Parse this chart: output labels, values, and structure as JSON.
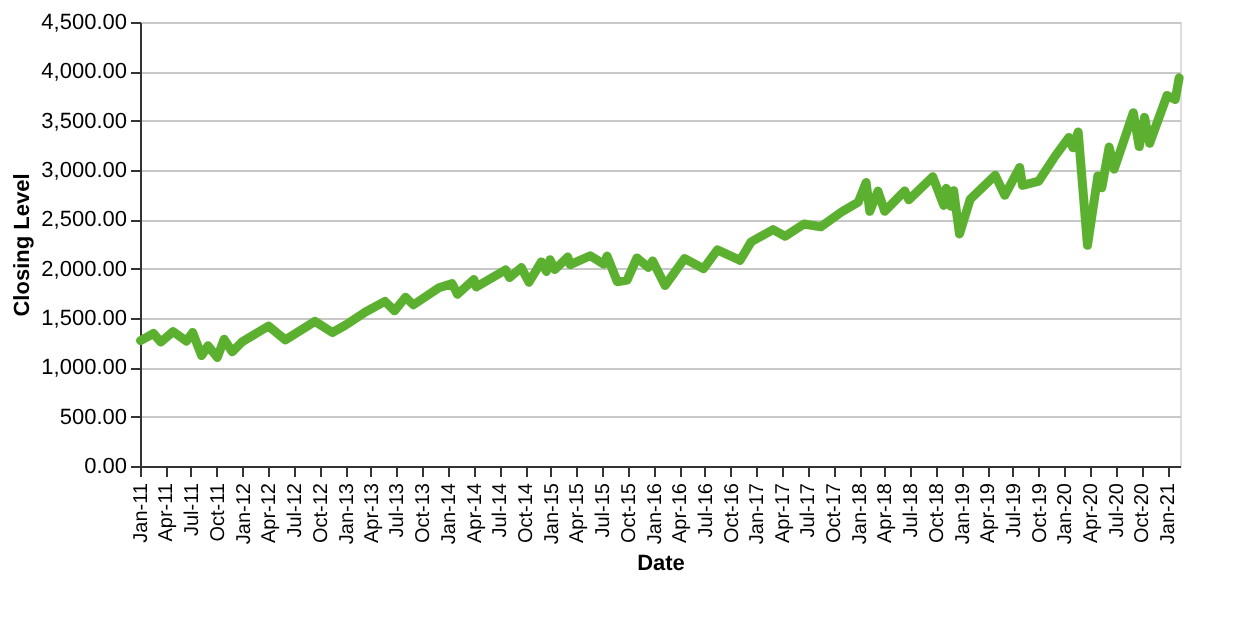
{
  "chart_data": {
    "type": "line",
    "xlabel": "Date",
    "ylabel": "Closing Level",
    "x": [
      "2011-01-03",
      "2011-02-18",
      "2011-03-16",
      "2011-04-29",
      "2011-06-15",
      "2011-07-07",
      "2011-08-08",
      "2011-08-31",
      "2011-10-03",
      "2011-10-27",
      "2011-11-25",
      "2011-12-30",
      "2012-04-02",
      "2012-06-01",
      "2012-09-14",
      "2012-11-15",
      "2012-12-31",
      "2013-03-14",
      "2013-05-21",
      "2013-06-24",
      "2013-08-02",
      "2013-08-30",
      "2013-11-29",
      "2014-01-15",
      "2014-02-03",
      "2014-04-02",
      "2014-04-11",
      "2014-07-24",
      "2014-08-07",
      "2014-09-18",
      "2014-10-15",
      "2014-11-28",
      "2014-12-16",
      "2014-12-29",
      "2015-01-15",
      "2015-03-02",
      "2015-03-11",
      "2015-05-21",
      "2015-07-08",
      "2015-07-20",
      "2015-08-25",
      "2015-09-29",
      "2015-11-03",
      "2015-12-14",
      "2015-12-29",
      "2016-02-11",
      "2016-04-20",
      "2016-06-27",
      "2016-08-15",
      "2016-11-04",
      "2016-12-13",
      "2017-03-01",
      "2017-04-13",
      "2017-06-19",
      "2017-08-18",
      "2017-10-31",
      "2017-12-29",
      "2018-01-26",
      "2018-02-08",
      "2018-03-09",
      "2018-04-02",
      "2018-06-12",
      "2018-06-27",
      "2018-09-20",
      "2018-10-29",
      "2018-11-07",
      "2018-11-23",
      "2018-12-03",
      "2018-12-24",
      "2019-01-31",
      "2019-04-30",
      "2019-06-03",
      "2019-07-26",
      "2019-08-05",
      "2019-10-02",
      "2019-11-29",
      "2020-01-17",
      "2020-01-31",
      "2020-02-19",
      "2020-03-23",
      "2020-04-29",
      "2020-05-13",
      "2020-06-08",
      "2020-06-26",
      "2020-09-02",
      "2020-09-23",
      "2020-10-12",
      "2020-10-30",
      "2020-12-31",
      "2021-01-29",
      "2021-02-12"
    ],
    "series": [
      {
        "color": "#5bb12f",
        "values": [
          1271,
          1343,
          1256,
          1363,
          1265,
          1353,
          1119,
          1219,
          1099,
          1285,
          1158,
          1258,
          1419,
          1278,
          1466,
          1353,
          1426,
          1563,
          1669,
          1573,
          1710,
          1633,
          1806,
          1848,
          1741,
          1890,
          1815,
          1988,
          1910,
          2011,
          1862,
          2068,
          1972,
          2090,
          1992,
          2117,
          2040,
          2131,
          2046,
          2128,
          1868,
          1884,
          2109,
          2012,
          2078,
          1829,
          2102,
          2000,
          2190,
          2085,
          2271,
          2396,
          2329,
          2453,
          2425,
          2575,
          2674,
          2873,
          2581,
          2786,
          2582,
          2787,
          2699,
          2931,
          2641,
          2814,
          2633,
          2790,
          2351,
          2704,
          2946,
          2744,
          3026,
          2845,
          2888,
          3141,
          3330,
          3226,
          3386,
          2237,
          2940,
          2820,
          3232,
          3009,
          3580,
          3237,
          3534,
          3270,
          3756,
          3714,
          3934
        ]
      }
    ],
    "xlim": [
      "2011-01-01",
      "2021-02-15"
    ],
    "xticks": [
      {
        "value": "2011-01-01",
        "label": "Jan-11"
      },
      {
        "value": "2011-04-01",
        "label": "Apr-11"
      },
      {
        "value": "2011-07-01",
        "label": "Jul-11"
      },
      {
        "value": "2011-10-01",
        "label": "Oct-11"
      },
      {
        "value": "2012-01-01",
        "label": "Jan-12"
      },
      {
        "value": "2012-04-01",
        "label": "Apr-12"
      },
      {
        "value": "2012-07-01",
        "label": "Jul-12"
      },
      {
        "value": "2012-10-01",
        "label": "Oct-12"
      },
      {
        "value": "2013-01-01",
        "label": "Jan-13"
      },
      {
        "value": "2013-04-01",
        "label": "Apr-13"
      },
      {
        "value": "2013-07-01",
        "label": "Jul-13"
      },
      {
        "value": "2013-10-01",
        "label": "Oct-13"
      },
      {
        "value": "2014-01-01",
        "label": "Jan-14"
      },
      {
        "value": "2014-04-01",
        "label": "Apr-14"
      },
      {
        "value": "2014-07-01",
        "label": "Jul-14"
      },
      {
        "value": "2014-10-01",
        "label": "Oct-14"
      },
      {
        "value": "2015-01-01",
        "label": "Jan-15"
      },
      {
        "value": "2015-04-01",
        "label": "Apr-15"
      },
      {
        "value": "2015-07-01",
        "label": "Jul-15"
      },
      {
        "value": "2015-10-01",
        "label": "Oct-15"
      },
      {
        "value": "2016-01-01",
        "label": "Jan-16"
      },
      {
        "value": "2016-04-01",
        "label": "Apr-16"
      },
      {
        "value": "2016-07-01",
        "label": "Jul-16"
      },
      {
        "value": "2016-10-01",
        "label": "Oct-16"
      },
      {
        "value": "2017-01-01",
        "label": "Jan-17"
      },
      {
        "value": "2017-04-01",
        "label": "Apr-17"
      },
      {
        "value": "2017-07-01",
        "label": "Jul-17"
      },
      {
        "value": "2017-10-01",
        "label": "Oct-17"
      },
      {
        "value": "2018-01-01",
        "label": "Jan-18"
      },
      {
        "value": "2018-04-01",
        "label": "Apr-18"
      },
      {
        "value": "2018-07-01",
        "label": "Jul-18"
      },
      {
        "value": "2018-10-01",
        "label": "Oct-18"
      },
      {
        "value": "2019-01-01",
        "label": "Jan-19"
      },
      {
        "value": "2019-04-01",
        "label": "Apr-19"
      },
      {
        "value": "2019-07-01",
        "label": "Jul-19"
      },
      {
        "value": "2019-10-01",
        "label": "Oct-19"
      },
      {
        "value": "2020-01-01",
        "label": "Jan-20"
      },
      {
        "value": "2020-04-01",
        "label": "Apr-20"
      },
      {
        "value": "2020-07-01",
        "label": "Jul-20"
      },
      {
        "value": "2020-10-01",
        "label": "Oct-20"
      },
      {
        "value": "2021-01-01",
        "label": "Jan-21"
      }
    ],
    "ylim": [
      0,
      4500
    ],
    "yticks": [
      {
        "value": 0,
        "label": "0.00"
      },
      {
        "value": 500,
        "label": "500.00"
      },
      {
        "value": 1000,
        "label": "1,000.00"
      },
      {
        "value": 1500,
        "label": "1,500.00"
      },
      {
        "value": 2000,
        "label": "2,000.00"
      },
      {
        "value": 2500,
        "label": "2,500.00"
      },
      {
        "value": 3000,
        "label": "3,000.00"
      },
      {
        "value": 3500,
        "label": "3,500.00"
      },
      {
        "value": 4000,
        "label": "4,000.00"
      },
      {
        "value": 4500,
        "label": "4,500.00"
      }
    ],
    "grid": "y",
    "marker": "none",
    "line_style": "solid"
  }
}
